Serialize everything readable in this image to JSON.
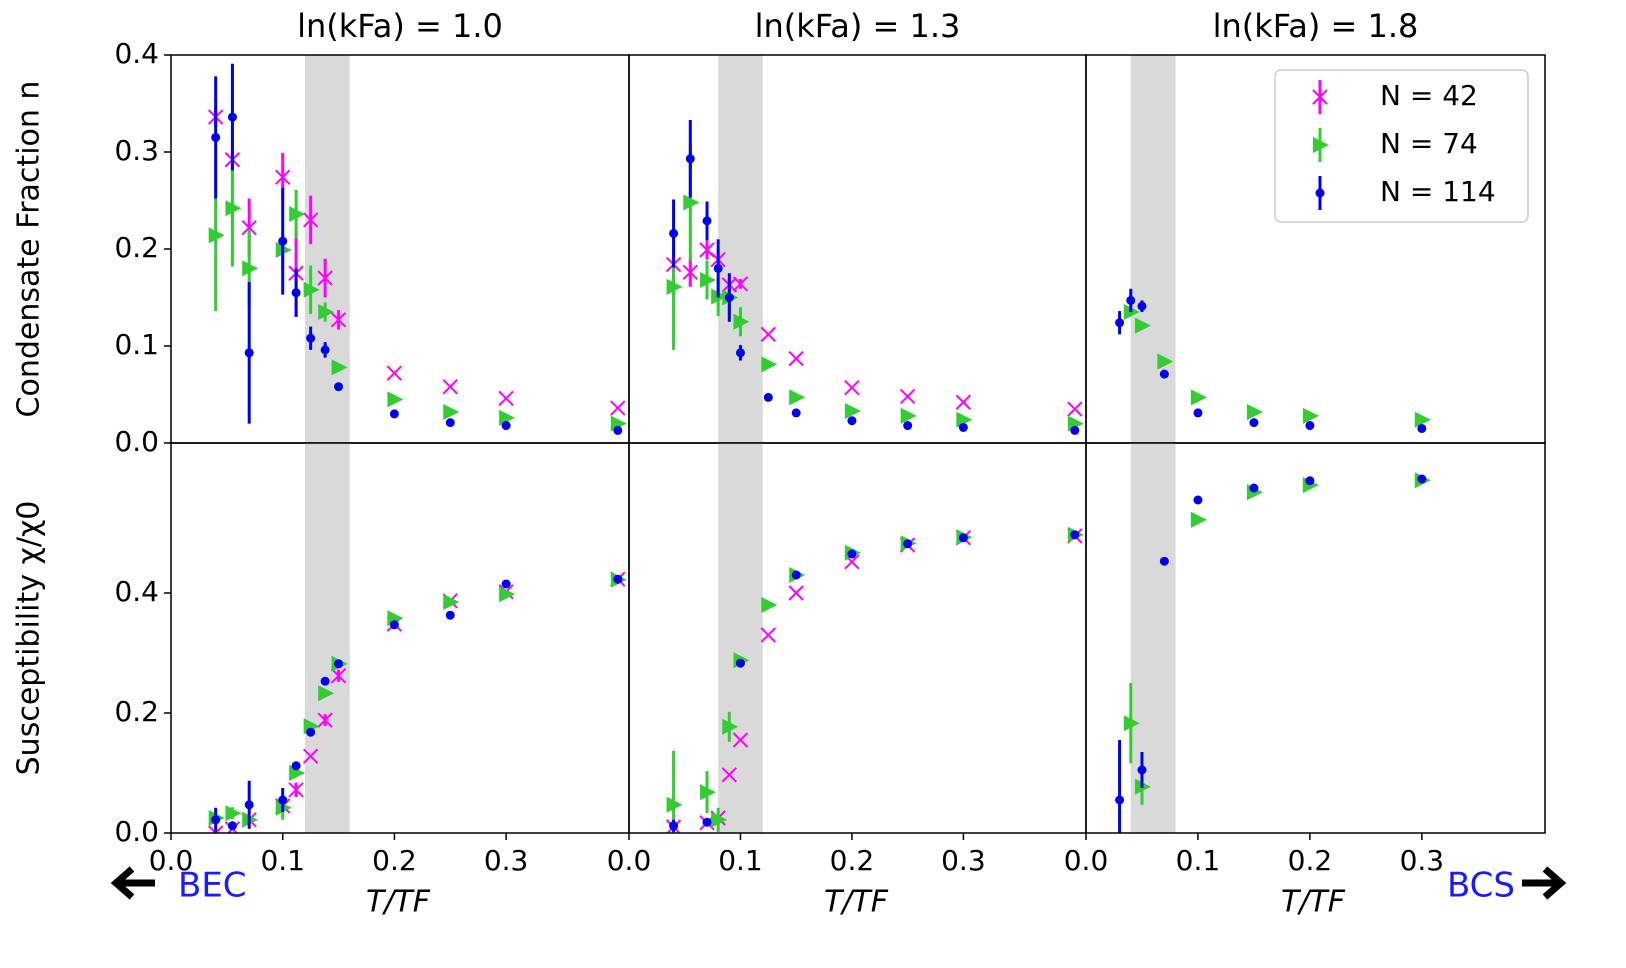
{
  "annotations": [
    "BEC",
    "BCS"
  ],
  "chart_data": [
    {
      "type": "scatter",
      "title": "ln(kFa) = 1.0",
      "ylabel": "Condensate Fraction n",
      "xlim": [
        0,
        0.41
      ],
      "ylim": [
        0,
        0.4
      ],
      "yticks": [
        {
          "value": 0,
          "label": "0.0"
        },
        0.1,
        0.2,
        0.3,
        0.4
      ],
      "shade": [
        0.12,
        0.16
      ],
      "series": [
        {
          "color": "#ff00ff",
          "marker": "x",
          "x": [
            0.04,
            0.055,
            0.07,
            0.1,
            0.112,
            0.125,
            0.138,
            0.15,
            0.2,
            0.25,
            0.3,
            0.4
          ],
          "values": [
            0.336,
            0.292,
            0.222,
            0.274,
            0.175,
            0.23,
            0.17,
            0.127,
            0.072,
            0.058,
            0.046,
            0.036
          ],
          "errors": [
            0.01,
            0.008,
            0.03,
            0.025,
            0.045,
            0.025,
            0.02,
            0.01,
            0,
            0,
            0,
            0
          ]
        },
        {
          "color": "#33cc33",
          "marker": "triangle",
          "x": [
            0.04,
            0.055,
            0.07,
            0.1,
            0.112,
            0.125,
            0.138,
            0.15,
            0.2,
            0.25,
            0.3,
            0.4
          ],
          "values": [
            0.214,
            0.242,
            0.18,
            0.199,
            0.236,
            0.158,
            0.135,
            0.078,
            0.045,
            0.032,
            0.026,
            0.02
          ],
          "errors": [
            0.078,
            0.06,
            0.04,
            0.02,
            0.025,
            0.025,
            0.01,
            0,
            0,
            0,
            0,
            0
          ]
        },
        {
          "color": "#0000ee",
          "marker": "circle",
          "x": [
            0.04,
            0.055,
            0.07,
            0.1,
            0.112,
            0.125,
            0.138,
            0.15,
            0.2,
            0.25,
            0.3,
            0.4
          ],
          "values": [
            0.315,
            0.336,
            0.093,
            0.208,
            0.155,
            0.108,
            0.096,
            0.058,
            0.03,
            0.021,
            0.018,
            0.013
          ],
          "errors": [
            0.063,
            0.055,
            0.073,
            0.055,
            0.025,
            0.012,
            0.008,
            0.003,
            0,
            0,
            0,
            0
          ]
        }
      ]
    },
    {
      "type": "scatter",
      "title": "ln(kFa) = 1.3",
      "xlim": [
        0,
        0.41
      ],
      "ylim": [
        0,
        0.4
      ],
      "shade": [
        0.08,
        0.12
      ],
      "series": [
        {
          "color": "#ff00ff",
          "marker": "x",
          "x": [
            0.04,
            0.055,
            0.07,
            0.08,
            0.09,
            0.1,
            0.125,
            0.15,
            0.2,
            0.25,
            0.3,
            0.4
          ],
          "values": [
            0.184,
            0.176,
            0.199,
            0.189,
            0.163,
            0.164,
            0.112,
            0.087,
            0.057,
            0.048,
            0.042,
            0.035
          ],
          "errors": [
            0.015,
            0.015,
            0.01,
            0.01,
            0.005,
            0.005,
            0,
            0,
            0,
            0,
            0,
            0
          ]
        },
        {
          "color": "#33cc33",
          "marker": "triangle",
          "x": [
            0.04,
            0.055,
            0.07,
            0.08,
            0.09,
            0.1,
            0.125,
            0.15,
            0.2,
            0.25,
            0.3,
            0.4
          ],
          "values": [
            0.161,
            0.248,
            0.168,
            0.151,
            0.15,
            0.125,
            0.081,
            0.047,
            0.033,
            0.028,
            0.024,
            0.02
          ],
          "errors": [
            0.065,
            0.06,
            0.02,
            0.02,
            0.02,
            0.015,
            0,
            0,
            0,
            0,
            0,
            0
          ]
        },
        {
          "color": "#0000ee",
          "marker": "circle",
          "x": [
            0.04,
            0.055,
            0.07,
            0.08,
            0.09,
            0.1,
            0.125,
            0.15,
            0.2,
            0.25,
            0.3,
            0.4
          ],
          "values": [
            0.216,
            0.293,
            0.229,
            0.18,
            0.15,
            0.093,
            0.047,
            0.031,
            0.023,
            0.018,
            0.016,
            0.013
          ],
          "errors": [
            0.035,
            0.04,
            0.02,
            0.03,
            0.025,
            0.008,
            0,
            0,
            0,
            0,
            0,
            0
          ]
        }
      ]
    },
    {
      "type": "scatter",
      "title": "ln(kFa) = 1.8",
      "xlim": [
        0,
        0.41
      ],
      "ylim": [
        0,
        0.4
      ],
      "shade": [
        0.04,
        0.08
      ],
      "legend": "upper right",
      "series": [
        {
          "name": "N = 42",
          "color": "#ff00ff",
          "marker": "x",
          "x": [],
          "values": [],
          "errors": []
        },
        {
          "name": "N = 74",
          "color": "#33cc33",
          "marker": "triangle",
          "x": [
            0.04,
            0.05,
            0.07,
            0.1,
            0.15,
            0.2,
            0.3
          ],
          "values": [
            0.135,
            0.121,
            0.084,
            0.047,
            0.032,
            0.028,
            0.024
          ],
          "errors": [
            0,
            0,
            0,
            0,
            0,
            0,
            0
          ]
        },
        {
          "name": "N = 114",
          "color": "#0000ee",
          "marker": "circle",
          "x": [
            0.03,
            0.04,
            0.05,
            0.07,
            0.1,
            0.15,
            0.2,
            0.3
          ],
          "values": [
            0.124,
            0.147,
            0.141,
            0.071,
            0.031,
            0.021,
            0.018,
            0.015
          ],
          "errors": [
            0.012,
            0.012,
            0.006,
            0,
            0,
            0,
            0,
            0
          ]
        }
      ]
    },
    {
      "type": "scatter",
      "ylabel": "Susceptibility χ/χ0",
      "xlabel": "T/TF",
      "xlim": [
        0,
        0.41
      ],
      "ylim": [
        0,
        0.65
      ],
      "xticks": [
        {
          "value": 0,
          "label": "0.0"
        },
        0.1,
        0.2,
        0.3
      ],
      "yticks": [
        {
          "value": 0,
          "label": "0.0"
        },
        0.2,
        0.4
      ],
      "shade": [
        0.12,
        0.16
      ],
      "series": [
        {
          "color": "#ff00ff",
          "marker": "x",
          "x": [
            0.04,
            0.055,
            0.07,
            0.1,
            0.112,
            0.125,
            0.138,
            0.15,
            0.2,
            0.25,
            0.3,
            0.4
          ],
          "values": [
            0,
            0.007,
            0.022,
            0.045,
            0.072,
            0.128,
            0.188,
            0.262,
            0.348,
            0.387,
            0.402,
            0.423
          ],
          "errors": [
            0,
            0,
            0,
            0,
            0.012,
            0,
            0.01,
            0.01,
            0,
            0,
            0,
            0
          ]
        },
        {
          "color": "#33cc33",
          "marker": "triangle",
          "x": [
            0.04,
            0.055,
            0.07,
            0.1,
            0.112,
            0.125,
            0.138,
            0.15,
            0.2,
            0.25,
            0.3,
            0.4
          ],
          "values": [
            0.025,
            0.033,
            0.022,
            0.042,
            0.1,
            0.178,
            0.233,
            0.282,
            0.358,
            0.385,
            0.398,
            0.422
          ],
          "errors": [
            0.01,
            0.01,
            0,
            0.02,
            0,
            0,
            0,
            0,
            0,
            0,
            0,
            0
          ]
        },
        {
          "color": "#0000ee",
          "marker": "circle",
          "x": [
            0.04,
            0.055,
            0.07,
            0.1,
            0.112,
            0.125,
            0.138,
            0.15,
            0.2,
            0.25,
            0.3,
            0.4
          ],
          "values": [
            0.022,
            0.012,
            0.047,
            0.055,
            0.112,
            0.168,
            0.253,
            0.282,
            0.347,
            0.363,
            0.415,
            0.423
          ],
          "errors": [
            0.02,
            0,
            0.04,
            0.02,
            0,
            0,
            0,
            0,
            0,
            0,
            0,
            0
          ]
        }
      ]
    },
    {
      "type": "scatter",
      "xlabel": "T/TF",
      "xlim": [
        0,
        0.41
      ],
      "ylim": [
        0,
        0.65
      ],
      "xticks": [
        {
          "value": 0,
          "label": "0.0"
        },
        0.1,
        0.2,
        0.3
      ],
      "shade": [
        0.08,
        0.12
      ],
      "series": [
        {
          "color": "#ff00ff",
          "marker": "x",
          "x": [
            0.04,
            0.07,
            0.08,
            0.09,
            0.1,
            0.125,
            0.15,
            0.2,
            0.25,
            0.3,
            0.4
          ],
          "values": [
            0.01,
            0.017,
            0.025,
            0.097,
            0.155,
            0.33,
            0.4,
            0.452,
            0.48,
            0.492,
            0.495
          ],
          "errors": [
            0,
            0,
            0,
            0,
            0,
            0,
            0,
            0,
            0,
            0,
            0
          ]
        },
        {
          "color": "#33cc33",
          "marker": "triangle",
          "x": [
            0.04,
            0.07,
            0.08,
            0.09,
            0.1,
            0.125,
            0.15,
            0.2,
            0.25,
            0.3,
            0.4
          ],
          "values": [
            0.047,
            0.068,
            0.022,
            0.177,
            0.288,
            0.38,
            0.43,
            0.467,
            0.483,
            0.493,
            0.497
          ],
          "errors": [
            0.09,
            0.035,
            0.02,
            0.025,
            0,
            0,
            0,
            0,
            0,
            0,
            0
          ]
        },
        {
          "color": "#0000ee",
          "marker": "circle",
          "x": [
            0.04,
            0.07,
            0.1,
            0.15,
            0.2,
            0.25,
            0.3,
            0.4
          ],
          "values": [
            0.012,
            0.018,
            0.283,
            0.43,
            0.465,
            0.482,
            0.492,
            0.497
          ],
          "errors": [
            0.01,
            0,
            0,
            0,
            0,
            0,
            0,
            0
          ]
        }
      ]
    },
    {
      "type": "scatter",
      "xlabel": "T/TF",
      "xlim": [
        0,
        0.41
      ],
      "ylim": [
        0,
        0.65
      ],
      "xticks": [
        {
          "value": 0,
          "label": "0.0"
        },
        0.1,
        0.2,
        0.3
      ],
      "shade": [
        0.04,
        0.08
      ],
      "series": [
        {
          "color": "#33cc33",
          "marker": "triangle",
          "x": [
            0.04,
            0.05,
            0.1,
            0.15,
            0.2,
            0.3
          ],
          "values": [
            0.183,
            0.077,
            0.522,
            0.568,
            0.58,
            0.588
          ],
          "errors": [
            0.067,
            0.03,
            0,
            0,
            0,
            0
          ]
        },
        {
          "color": "#0000ee",
          "marker": "circle",
          "x": [
            0.03,
            0.05,
            0.07,
            0.1,
            0.15,
            0.2,
            0.3
          ],
          "values": [
            0.055,
            0.105,
            0.453,
            0.555,
            0.575,
            0.587,
            0.59
          ],
          "errors": [
            0.1,
            0.03,
            0,
            0,
            0,
            0,
            0
          ]
        }
      ]
    }
  ]
}
